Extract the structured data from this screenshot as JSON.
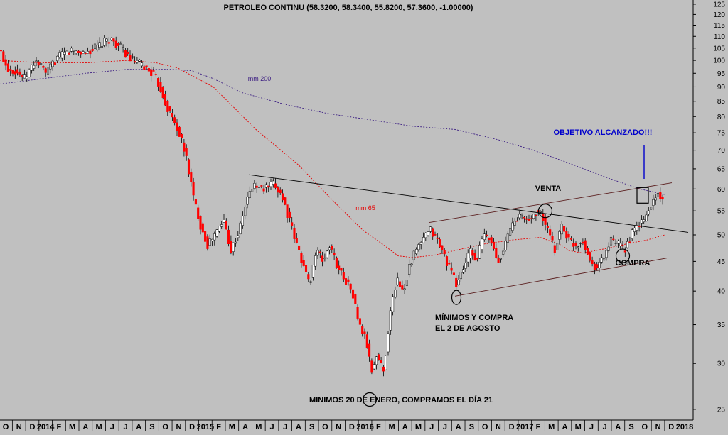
{
  "chart_data": {
    "type": "candlestick",
    "title": "PETROLEO CONTINU (58.3200, 58.3400, 55.8200, 57.3600, -1.00000)",
    "y_scale": "log",
    "ylim": [
      23,
      130
    ],
    "y_ticks": [
      25,
      30,
      35,
      40,
      45,
      50,
      55,
      60,
      65,
      70,
      75,
      80,
      85,
      90,
      95,
      100,
      105,
      110,
      115,
      120,
      125
    ],
    "x_ticks": [
      "O",
      "N",
      "D",
      "2014",
      "F",
      "M",
      "A",
      "M",
      "J",
      "J",
      "A",
      "S",
      "O",
      "N",
      "D",
      "2015",
      "F",
      "M",
      "A",
      "M",
      "J",
      "J",
      "A",
      "S",
      "O",
      "N",
      "D",
      "2016",
      "F",
      "M",
      "A",
      "M",
      "J",
      "J",
      "A",
      "S",
      "O",
      "N",
      "D",
      "2017",
      "F",
      "M",
      "A",
      "M",
      "J",
      "J",
      "A",
      "S",
      "O",
      "N",
      "D",
      "2018"
    ],
    "price_path": [
      [
        0,
        104
      ],
      [
        10,
        97
      ],
      [
        22,
        96
      ],
      [
        35,
        93
      ],
      [
        50,
        100
      ],
      [
        65,
        95
      ],
      [
        80,
        101
      ],
      [
        100,
        104
      ],
      [
        120,
        103
      ],
      [
        140,
        106
      ],
      [
        155,
        109
      ],
      [
        170,
        105
      ],
      [
        185,
        100
      ],
      [
        200,
        98
      ],
      [
        215,
        95
      ],
      [
        225,
        90
      ],
      [
        235,
        83
      ],
      [
        250,
        76
      ],
      [
        262,
        68
      ],
      [
        272,
        58
      ],
      [
        282,
        52
      ],
      [
        292,
        48
      ],
      [
        302,
        50
      ],
      [
        315,
        53
      ],
      [
        325,
        47
      ],
      [
        337,
        51
      ],
      [
        346,
        57
      ],
      [
        356,
        61
      ],
      [
        370,
        60
      ],
      [
        385,
        61
      ],
      [
        395,
        59
      ],
      [
        405,
        54
      ],
      [
        415,
        49
      ],
      [
        425,
        45
      ],
      [
        435,
        41
      ],
      [
        445,
        47
      ],
      [
        455,
        45
      ],
      [
        463,
        48
      ],
      [
        475,
        44
      ],
      [
        485,
        42
      ],
      [
        495,
        40
      ],
      [
        505,
        35
      ],
      [
        515,
        33
      ],
      [
        522,
        29
      ],
      [
        530,
        31
      ],
      [
        540,
        29
      ],
      [
        548,
        36
      ],
      [
        558,
        42
      ],
      [
        568,
        40
      ],
      [
        575,
        44
      ],
      [
        585,
        47
      ],
      [
        595,
        49
      ],
      [
        605,
        51
      ],
      [
        615,
        49
      ],
      [
        625,
        46
      ],
      [
        635,
        43
      ],
      [
        642,
        41
      ],
      [
        652,
        44
      ],
      [
        662,
        47
      ],
      [
        670,
        45
      ],
      [
        680,
        50
      ],
      [
        690,
        49
      ],
      [
        700,
        45
      ],
      [
        710,
        48
      ],
      [
        720,
        52
      ],
      [
        730,
        54
      ],
      [
        745,
        53
      ],
      [
        755,
        55
      ],
      [
        762,
        54
      ],
      [
        770,
        51
      ],
      [
        780,
        47
      ],
      [
        790,
        52
      ],
      [
        800,
        49
      ],
      [
        810,
        48
      ],
      [
        820,
        49
      ],
      [
        830,
        45
      ],
      [
        840,
        44
      ],
      [
        850,
        46
      ],
      [
        860,
        49
      ],
      [
        870,
        48
      ],
      [
        878,
        47
      ],
      [
        888,
        50
      ],
      [
        898,
        52
      ],
      [
        906,
        53
      ],
      [
        912,
        55
      ],
      [
        918,
        57
      ],
      [
        926,
        59
      ],
      [
        935,
        57.36
      ]
    ],
    "series": [
      {
        "name": "mm 200",
        "color": "#3c1e82",
        "style": "dashed",
        "values": [
          [
            0,
            91
          ],
          [
            60,
            93
          ],
          [
            120,
            95
          ],
          [
            180,
            96.5
          ],
          [
            240,
            96.5
          ],
          [
            270,
            96
          ],
          [
            300,
            93
          ],
          [
            340,
            88
          ],
          [
            400,
            84
          ],
          [
            460,
            81
          ],
          [
            520,
            79
          ],
          [
            580,
            77
          ],
          [
            640,
            76
          ],
          [
            700,
            73
          ],
          [
            750,
            70
          ],
          [
            800,
            66.5
          ],
          [
            850,
            63
          ],
          [
            900,
            60
          ],
          [
            935,
            58.7
          ]
        ]
      },
      {
        "name": "mm 65",
        "color": "#e60000",
        "style": "dashed",
        "values": [
          [
            0,
            100
          ],
          [
            60,
            99
          ],
          [
            120,
            99
          ],
          [
            180,
            100
          ],
          [
            220,
            99
          ],
          [
            250,
            97
          ],
          [
            300,
            90
          ],
          [
            360,
            76
          ],
          [
            420,
            66
          ],
          [
            470,
            57
          ],
          [
            510,
            51
          ],
          [
            540,
            48
          ],
          [
            560,
            46
          ],
          [
            580,
            45.7
          ],
          [
            610,
            46.1
          ],
          [
            640,
            47
          ],
          [
            680,
            48.2
          ],
          [
            720,
            49
          ],
          [
            760,
            49.5
          ],
          [
            790,
            48
          ],
          [
            800,
            47
          ],
          [
            820,
            46.5
          ],
          [
            850,
            47.3
          ],
          [
            880,
            48.2
          ],
          [
            910,
            49
          ],
          [
            935,
            50
          ]
        ]
      }
    ],
    "annotations": [
      "mm 200",
      "mm 65",
      "OBJETIVO ALCANZADO!!!",
      "VENTA",
      "COMPRA",
      "MÍNIMOS Y COMPRA",
      "EL 2 DE AGOSTO",
      "MINIMOS 20 DE ENERO, COMPRAMOS EL DÍA 21"
    ],
    "trendlines": [
      {
        "from": [
          350,
          63.5
        ],
        "to": [
          968,
          50.5
        ]
      },
      {
        "from": [
          603,
          52.5
        ],
        "to": [
          945,
          61.5
        ]
      },
      {
        "from": [
          640,
          39.2
        ],
        "to": [
          938,
          45.6
        ]
      }
    ],
    "markers": [
      {
        "type": "circle",
        "at": [
          520,
          26
        ]
      },
      {
        "type": "circle",
        "at": [
          642,
          39
        ]
      },
      {
        "type": "circle",
        "at": [
          767,
          55
        ]
      },
      {
        "type": "circle",
        "at": [
          876,
          46
        ]
      },
      {
        "type": "square",
        "at": [
          904,
          58.5
        ]
      }
    ],
    "colors": {
      "background": "#c0c0c0",
      "up_candle": "#ffffff",
      "down_candle": "#ff0000",
      "wick": "#000000",
      "highlight": "#0000cc"
    },
    "grid": false,
    "legend": "none"
  }
}
